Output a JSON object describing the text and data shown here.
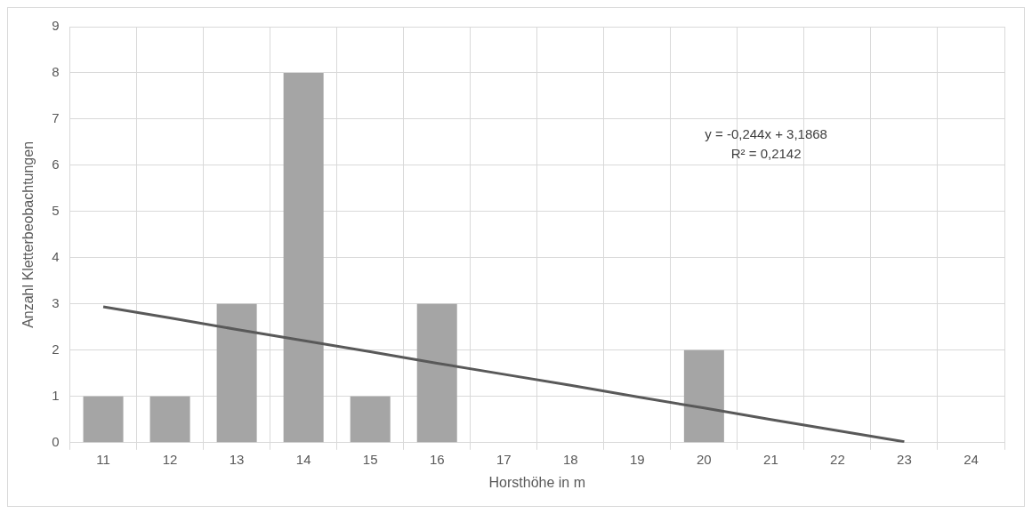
{
  "chart_data": {
    "type": "bar",
    "xlabel": "Horsthöhe in m",
    "ylabel": "Anzahl Kletterbeobachtungen",
    "categories": [
      "11",
      "12",
      "13",
      "14",
      "15",
      "16",
      "17",
      "18",
      "19",
      "20",
      "21",
      "22",
      "23",
      "24"
    ],
    "series": [
      {
        "color": "#a5a5a5",
        "values": [
          1,
          1,
          3,
          8,
          1,
          3,
          0,
          0,
          0,
          2,
          0,
          0,
          0,
          0
        ]
      },
      {
        "type": "line",
        "color": "#595959",
        "values": [
          2.94,
          2.7,
          2.45,
          2.21,
          1.97,
          1.72,
          1.48,
          1.24,
          0.99,
          0.75,
          0.5,
          0.26,
          0.02,
          null
        ]
      }
    ],
    "ylim": [
      0,
      9
    ],
    "yticks": [
      0,
      1,
      2,
      3,
      4,
      5,
      6,
      7,
      8,
      9
    ],
    "grid": true,
    "legend": false,
    "annotations": [
      "y = -0,244x + 3,1868",
      "R² = 0,2142"
    ]
  }
}
